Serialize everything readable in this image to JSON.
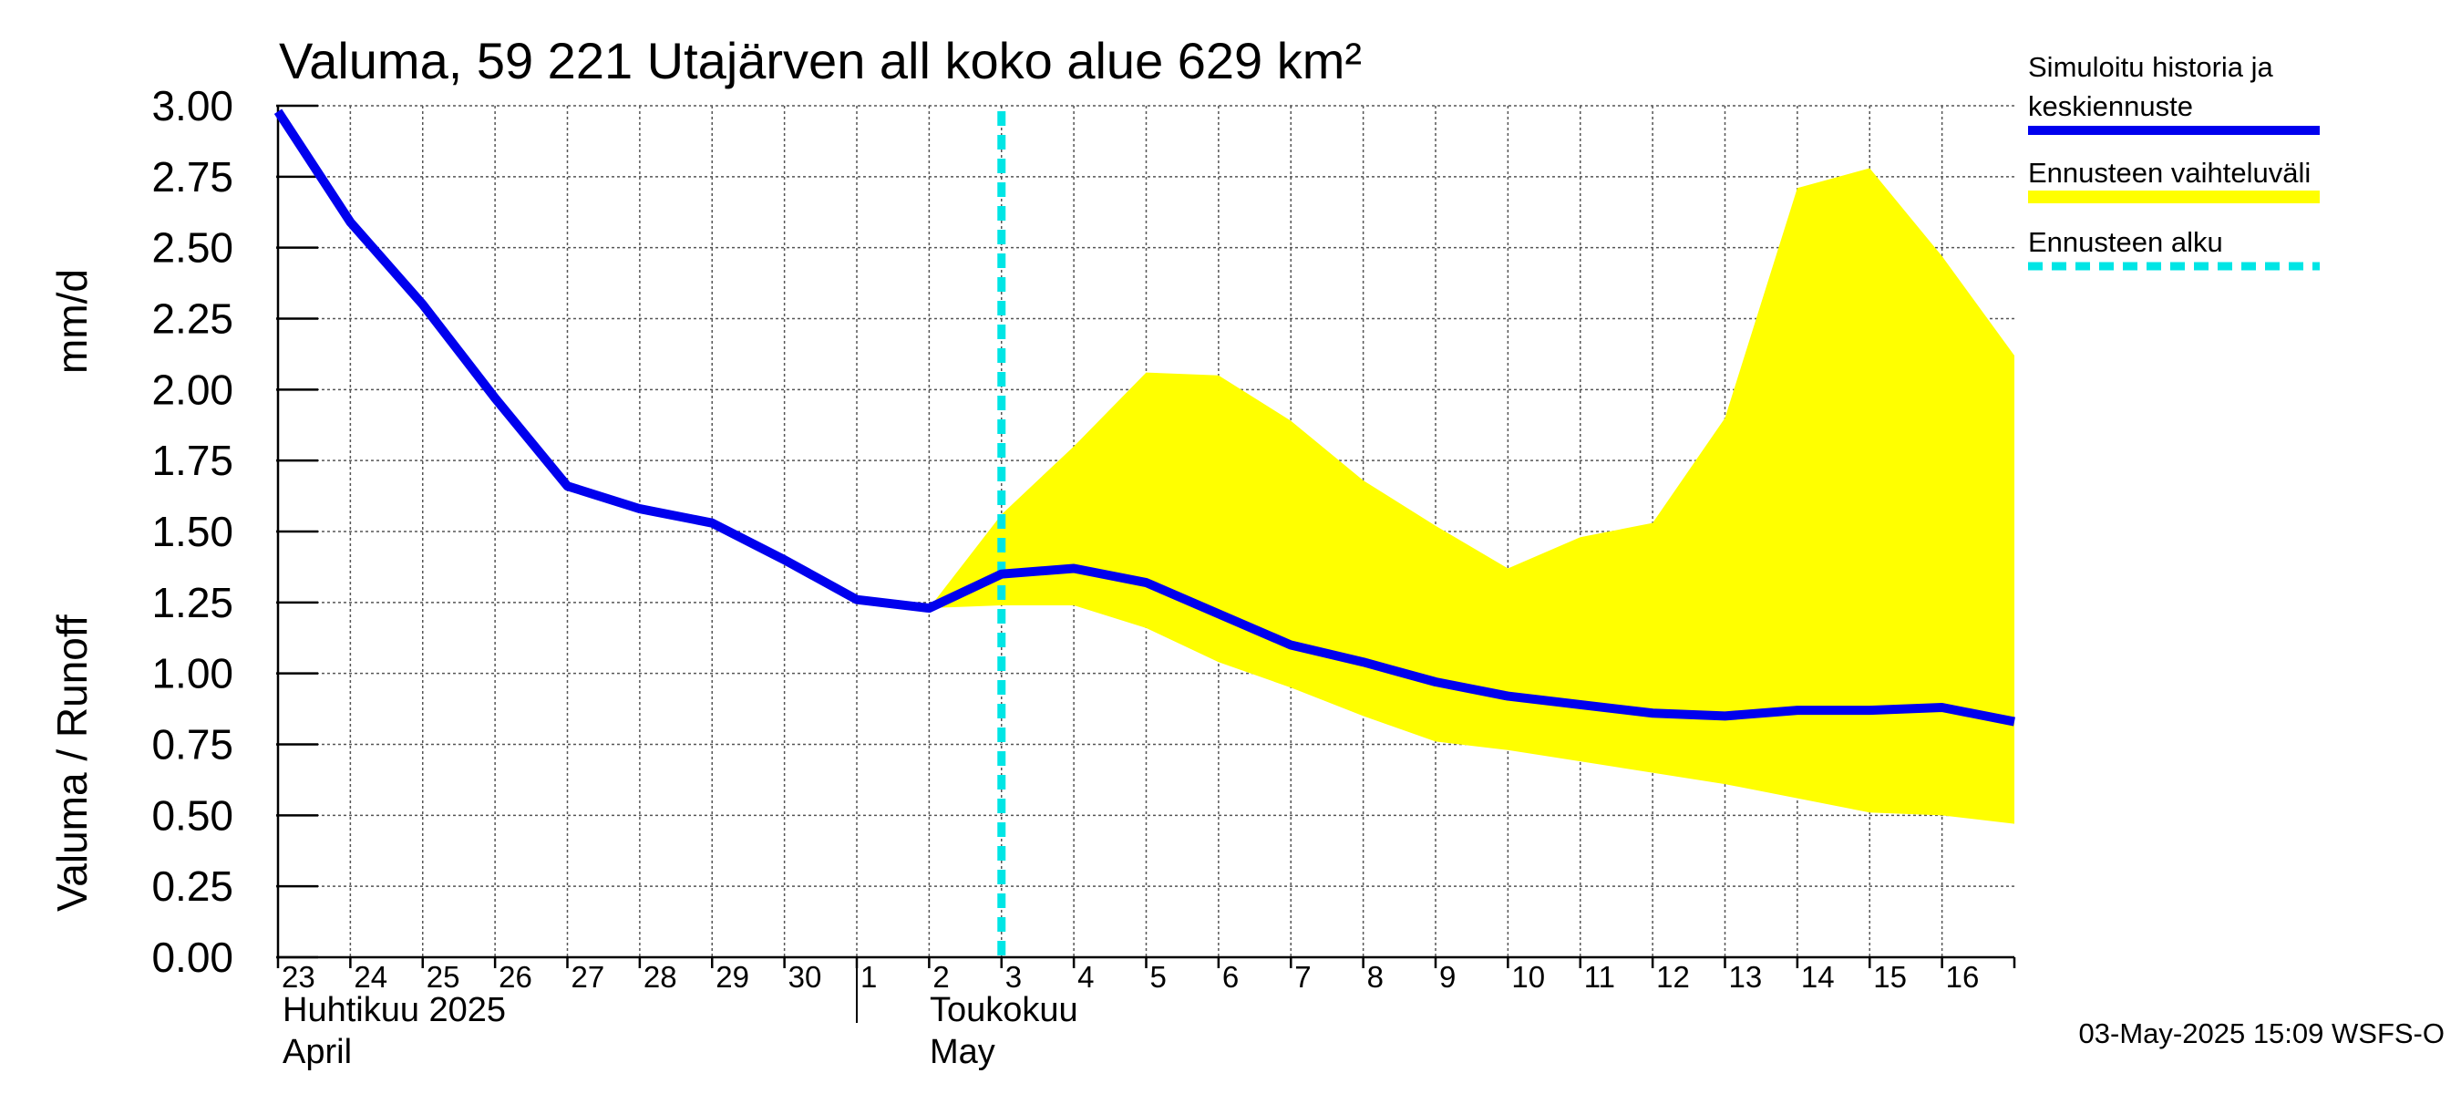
{
  "chart_data": {
    "type": "line",
    "title": "Valuma, 59 221 Utajärven all koko alue 629 km²",
    "ylabel_left": "Valuma / Runoff",
    "ylabel_right": "mm/d",
    "ylim": [
      0,
      3
    ],
    "yticks": [
      "0.00",
      "0.25",
      "0.50",
      "0.75",
      "1.00",
      "1.25",
      "1.50",
      "1.75",
      "2.00",
      "2.25",
      "2.50",
      "2.75",
      "3.00"
    ],
    "grid": true,
    "x_labels": [
      "23",
      "24",
      "25",
      "26",
      "27",
      "28",
      "29",
      "30",
      "1",
      "2",
      "3",
      "4",
      "5",
      "6",
      "7",
      "8",
      "9",
      "10",
      "11",
      "12",
      "13",
      "14",
      "15",
      "16"
    ],
    "months": {
      "april_fi": "Huhtikuu  2025",
      "april_en": "April",
      "may_fi": "Toukokuu",
      "may_en": "May"
    },
    "series": [
      {
        "name": "Simuloitu historia ja keskiennuste",
        "color": "#0000ee",
        "x": [
          0,
          1,
          2,
          3,
          4,
          5,
          6,
          7,
          8,
          9,
          10,
          11,
          12,
          13,
          14,
          15,
          16,
          17,
          18,
          19,
          20,
          21,
          22,
          23,
          24
        ],
        "values": [
          2.98,
          2.59,
          2.3,
          1.97,
          1.66,
          1.58,
          1.53,
          1.4,
          1.26,
          1.23,
          1.35,
          1.37,
          1.32,
          1.21,
          1.1,
          1.04,
          0.97,
          0.92,
          0.89,
          0.86,
          0.85,
          0.87,
          0.87,
          0.88,
          0.83
        ]
      }
    ],
    "band": {
      "name": "Ennusteen vaihteluväli",
      "color": "#ffff00",
      "x": [
        9,
        10,
        11,
        12,
        13,
        14,
        15,
        16,
        17,
        18,
        19,
        20,
        21,
        22,
        23,
        24
      ],
      "upper": [
        1.23,
        1.56,
        1.8,
        2.06,
        2.05,
        1.89,
        1.68,
        1.52,
        1.37,
        1.48,
        1.53,
        1.9,
        2.71,
        2.78,
        2.47,
        2.12
      ],
      "lower": [
        1.23,
        1.24,
        1.24,
        1.16,
        1.04,
        0.95,
        0.85,
        0.76,
        0.73,
        0.69,
        0.65,
        0.61,
        0.56,
        0.51,
        0.5,
        0.47
      ]
    },
    "forecast_start": {
      "name": "Ennusteen alku",
      "x": 10,
      "color": "#00e5e5"
    },
    "legend": {
      "position": "right",
      "items": [
        {
          "label_line1": "Simuloitu historia ja",
          "label_line2": "keskiennuste",
          "color": "#0000ee",
          "style": "solid"
        },
        {
          "label_line1": "Ennusteen vaihteluväli",
          "label_line2": "",
          "color": "#ffff00",
          "style": "band"
        },
        {
          "label_line1": "Ennusteen alku",
          "label_line2": "",
          "color": "#00e5e5",
          "style": "dashed"
        }
      ]
    }
  },
  "footer": "03-May-2025 15:09 WSFS-O"
}
